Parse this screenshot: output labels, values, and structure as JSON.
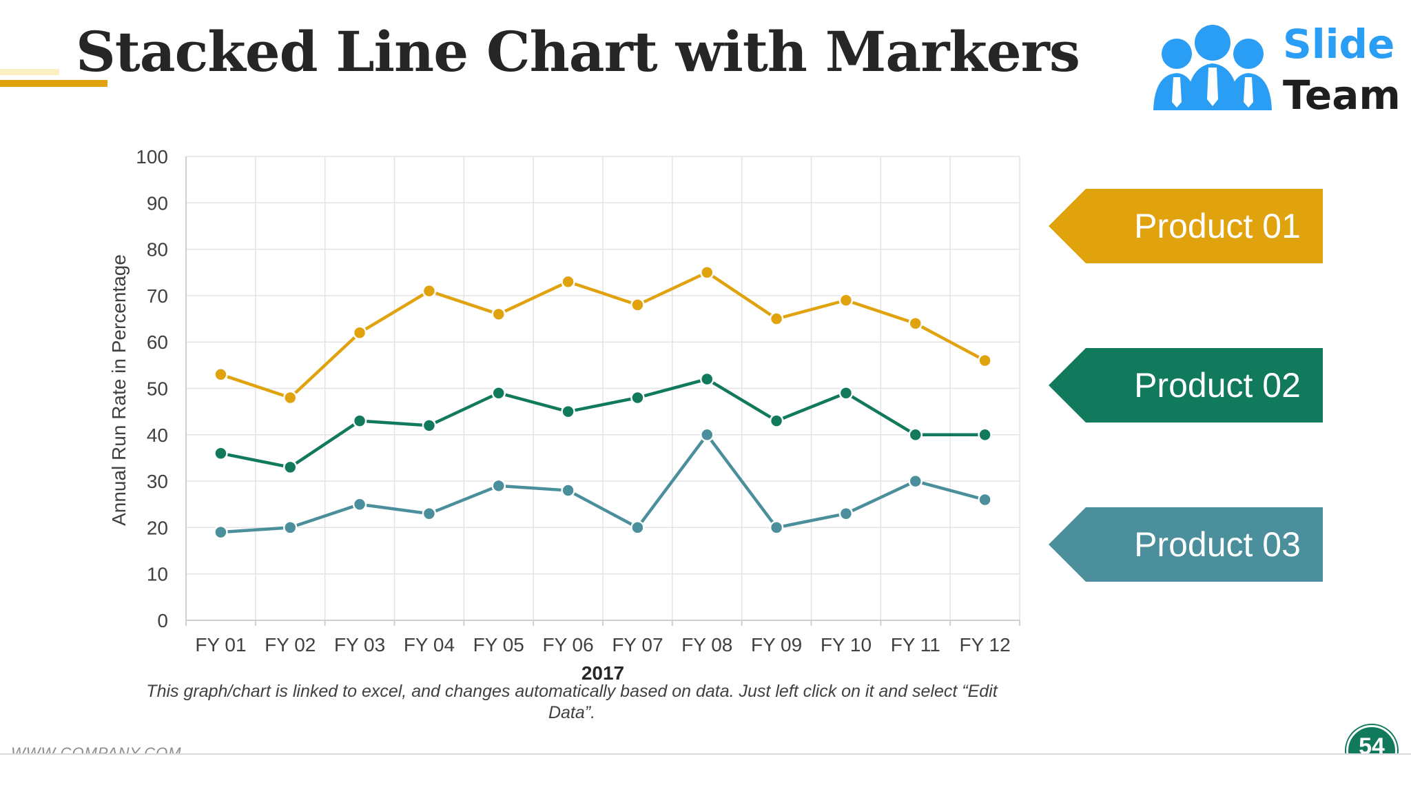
{
  "slide": {
    "title": "Stacked Line Chart with Markers",
    "note": "This graph/chart is linked to excel, and changes automatically based on data. Just left click on it and select “Edit Data”.",
    "footer_url": "WWW.COMPANY.COM",
    "page_number": "54"
  },
  "logo": {
    "word1": "Slide",
    "word2": "Team",
    "icon": "people-group-icon"
  },
  "colors": {
    "product01": "#e0a30e",
    "product02": "#127a5c",
    "product03": "#4a8f9b",
    "accent": "#e0a30e"
  },
  "tags": [
    {
      "label": "Product 01",
      "color": "#e0a30e"
    },
    {
      "label": "Product 02",
      "color": "#127a5c"
    },
    {
      "label": "Product 03",
      "color": "#4a8f9b"
    }
  ],
  "chart_data": {
    "type": "line",
    "categories": [
      "FY 01",
      "FY 02",
      "FY 03",
      "FY 04",
      "FY 05",
      "FY 06",
      "FY 07",
      "FY 08",
      "FY 09",
      "FY 10",
      "FY 11",
      "FY 12"
    ],
    "series": [
      {
        "name": "Product 01",
        "values": [
          53,
          48,
          62,
          71,
          66,
          73,
          68,
          75,
          65,
          69,
          64,
          56
        ]
      },
      {
        "name": "Product 02",
        "values": [
          36,
          33,
          43,
          42,
          49,
          45,
          48,
          52,
          43,
          49,
          40,
          40
        ]
      },
      {
        "name": "Product 03",
        "values": [
          19,
          20,
          25,
          23,
          29,
          28,
          20,
          40,
          20,
          23,
          30,
          26
        ]
      }
    ],
    "title": "",
    "xlabel": "2017",
    "ylabel": "Annual Run Rate in Percentage",
    "ylim": [
      0,
      100
    ],
    "yticks": [
      0,
      10,
      20,
      30,
      40,
      50,
      60,
      70,
      80,
      90,
      100
    ],
    "markers": true,
    "grid": true,
    "legend": "right"
  }
}
